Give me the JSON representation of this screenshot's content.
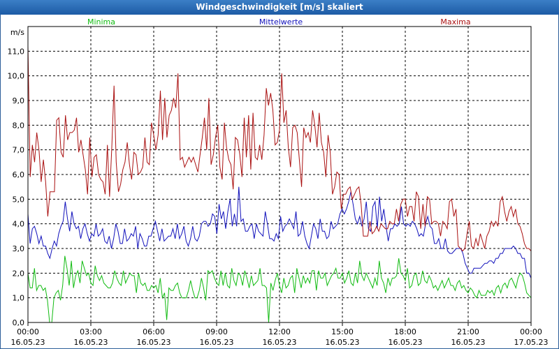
{
  "window": {
    "title": "Windgeschwindigkeit [m/s] skaliert"
  },
  "colors": {
    "minima": "#11bb11",
    "mittelwerte": "#1111bb",
    "maxima": "#aa1111",
    "titlebar": "#2a6db5"
  },
  "chart_data": {
    "type": "line",
    "title": "Windgeschwindigkeit [m/s] skaliert",
    "ylabel": "m/s",
    "ylim": [
      0,
      12
    ],
    "xlim": [
      0,
      24
    ],
    "grid": true,
    "legend": [
      "Minima",
      "Mittelwerte",
      "Maxima"
    ],
    "yticks": [
      "0,0",
      "1,0",
      "2,0",
      "3,0",
      "4,0",
      "5,0",
      "6,0",
      "7,0",
      "8,0",
      "9,0",
      "10,0",
      "11,0"
    ],
    "xticks": [
      {
        "time": "00:00",
        "date": "16.05.23"
      },
      {
        "time": "03:00",
        "date": "16.05.23"
      },
      {
        "time": "06:00",
        "date": "16.05.23"
      },
      {
        "time": "09:00",
        "date": "16.05.23"
      },
      {
        "time": "12:00",
        "date": "16.05.23"
      },
      {
        "time": "15:00",
        "date": "16.05.23"
      },
      {
        "time": "18:00",
        "date": "16.05.23"
      },
      {
        "time": "21:00",
        "date": "16.05.23"
      },
      {
        "time": "00:00",
        "date": "17.05.23"
      }
    ],
    "series": [
      {
        "name": "Minima",
        "values": [
          2.0,
          1.4,
          1.4,
          2.2,
          1.3,
          1.5,
          1.5,
          1.3,
          1.4,
          0.9,
          0.0,
          0.0,
          1.0,
          1.2,
          1.3,
          0.9,
          1.5,
          2.7,
          2.2,
          1.5,
          2.5,
          1.4,
          1.9,
          2.1,
          1.6,
          2.5,
          2.2,
          1.9,
          2.0,
          1.6,
          1.5,
          2.3,
          1.9,
          1.7,
          1.9,
          1.6,
          1.5,
          1.4,
          1.4,
          1.6,
          2.1,
          1.8,
          1.6,
          1.5,
          2.1,
          1.6,
          1.8,
          2.0,
          1.9,
          1.9,
          1.2,
          2.0,
          1.6,
          1.5,
          1.6,
          1.3,
          1.3,
          1.5,
          1.4,
          1.5,
          1.2,
          1.8,
          1.0,
          1.2,
          0.1,
          1.4,
          1.3,
          1.3,
          1.5,
          1.6,
          1.2,
          1.0,
          1.0,
          1.0,
          1.3,
          1.7,
          1.3,
          1.0,
          1.0,
          1.3,
          1.8,
          1.4,
          0.9,
          2.1,
          2.0,
          2.1,
          1.8,
          1.6,
          1.5,
          2.1,
          1.5,
          2.0,
          1.5,
          1.4,
          2.2,
          1.7,
          1.5,
          2.0,
          1.9,
          1.5,
          2.1,
          1.8,
          1.4,
          1.9,
          1.5,
          1.6,
          1.7,
          2.2,
          1.5,
          1.5,
          1.4,
          0.0,
          1.6,
          1.3,
          1.7,
          2.0,
          1.5,
          1.2,
          1.8,
          1.4,
          1.5,
          1.8,
          1.9,
          1.2,
          2.2,
          1.8,
          1.4,
          1.9,
          1.6,
          1.8,
          1.6,
          2.1,
          2.1,
          1.3,
          2.1,
          1.8,
          1.8,
          2.0,
          1.5,
          1.7,
          1.9,
          2.0,
          2.2,
          1.8,
          1.8,
          2.0,
          1.6,
          1.8,
          2.1,
          1.6,
          1.5,
          2.0,
          1.6,
          2.5,
          1.9,
          1.7,
          2.0,
          1.8,
          1.6,
          1.4,
          1.8,
          1.5,
          2.5,
          1.8,
          1.6,
          1.2,
          1.8,
          1.5,
          1.8,
          1.8,
          1.9,
          2.6,
          2.0,
          1.9,
          1.7,
          2.2,
          1.4,
          1.5,
          1.9,
          2.0,
          1.5,
          1.6,
          2.1,
          1.7,
          1.6,
          1.9,
          1.7,
          1.4,
          1.5,
          1.3,
          1.5,
          1.7,
          1.4,
          1.6,
          1.8,
          1.5,
          1.5,
          1.3,
          1.6,
          1.7,
          1.4,
          1.5,
          1.3,
          1.2,
          1.4,
          1.3,
          1.1,
          1.0,
          1.3,
          1.1,
          1.1,
          1.1,
          1.3,
          1.2,
          1.3,
          1.1,
          1.4,
          1.5,
          1.2,
          1.5,
          1.6,
          1.4,
          1.7,
          1.8,
          1.6,
          1.4,
          1.8,
          2.0,
          1.9,
          1.6,
          1.2,
          1.1,
          1.0
        ]
      },
      {
        "name": "Mittelwerte",
        "values": [
          4.4,
          3.2,
          3.8,
          3.9,
          3.6,
          3.2,
          3.5,
          3.1,
          3.1,
          2.8,
          2.6,
          3.0,
          3.3,
          3.1,
          3.6,
          3.9,
          4.1,
          4.9,
          4.2,
          3.7,
          4.5,
          4.0,
          3.8,
          3.9,
          3.4,
          3.8,
          4.0,
          3.6,
          3.3,
          3.6,
          3.5,
          4.0,
          3.5,
          3.6,
          3.8,
          3.3,
          3.2,
          3.5,
          3.0,
          3.4,
          4.0,
          3.7,
          3.2,
          3.2,
          3.8,
          3.3,
          3.4,
          3.6,
          3.5,
          3.9,
          3.0,
          3.6,
          3.4,
          3.1,
          3.1,
          3.5,
          3.5,
          3.8,
          4.1,
          3.7,
          3.3,
          3.8,
          3.3,
          3.4,
          3.5,
          3.5,
          3.8,
          3.4,
          4.0,
          3.4,
          3.6,
          3.9,
          3.3,
          3.1,
          3.4,
          3.9,
          3.4,
          3.3,
          3.5,
          4.0,
          4.1,
          4.1,
          3.9,
          4.0,
          4.4,
          4.3,
          3.6,
          4.8,
          4.2,
          4.5,
          3.8,
          4.5,
          5.0,
          3.9,
          4.4,
          3.9,
          5.5,
          4.1,
          4.2,
          3.7,
          3.7,
          3.9,
          4.0,
          3.4,
          4.0,
          3.7,
          3.6,
          3.5,
          4.5,
          4.0,
          3.4,
          3.4,
          3.3,
          3.6,
          3.4,
          4.3,
          3.7,
          3.9,
          4.0,
          4.2,
          4.0,
          3.8,
          4.5,
          3.5,
          3.6,
          4.1,
          3.5,
          3.2,
          3.0,
          3.5,
          4.0,
          3.8,
          3.4,
          4.2,
          3.7,
          3.7,
          3.4,
          3.5,
          4.1,
          3.8,
          3.9,
          4.0,
          4.4,
          4.6,
          4.4,
          4.6,
          4.9,
          5.3,
          4.8,
          4.2,
          4.0,
          4.3,
          3.9,
          4.2,
          4.9,
          3.8,
          3.7,
          4.7,
          4.9,
          3.8,
          5.1,
          4.1,
          4.6,
          3.9,
          3.3,
          3.8,
          3.8,
          4.0,
          3.9,
          4.0,
          4.7,
          4.0,
          3.9,
          4.0,
          3.9,
          4.1,
          4.0,
          3.8,
          3.5,
          3.6,
          3.5,
          4.0,
          4.3,
          3.9,
          3.8,
          3.2,
          3.2,
          3.4,
          3.0,
          3.0,
          3.4,
          2.9,
          2.8,
          2.8,
          2.9,
          3.0,
          3.0,
          3.0,
          2.8,
          2.4,
          2.2,
          2.0,
          2.0,
          2.2,
          2.2,
          2.2,
          2.2,
          2.3,
          2.4,
          2.4,
          2.5,
          2.5,
          2.4,
          2.6,
          2.6,
          2.8,
          2.8,
          3.0,
          3.0,
          3.0,
          3.0,
          3.1,
          3.0,
          2.8,
          2.8,
          2.6,
          2.6,
          2.0,
          2.0,
          1.8
        ]
      },
      {
        "name": "Maxima",
        "values": [
          11.2,
          5.9,
          7.2,
          6.5,
          7.7,
          7.0,
          5.7,
          6.6,
          5.7,
          4.3,
          5.3,
          5.3,
          5.3,
          8.2,
          8.3,
          6.9,
          6.7,
          8.4,
          7.4,
          7.7,
          7.7,
          7.8,
          8.3,
          6.9,
          7.4,
          6.8,
          6.2,
          5.2,
          7.5,
          5.9,
          6.7,
          6.8,
          6.0,
          5.8,
          5.7,
          5.2,
          7.2,
          5.1,
          7.1,
          9.6,
          6.5,
          5.3,
          5.6,
          6.2,
          6.5,
          7.3,
          6.4,
          5.8,
          6.9,
          6.8,
          6.0,
          6.1,
          6.3,
          7.5,
          6.5,
          6.4,
          8.1,
          7.6,
          7.0,
          7.6,
          9.4,
          7.4,
          9.1,
          7.5,
          8.4,
          8.6,
          9.1,
          8.7,
          10.1,
          6.6,
          6.7,
          6.3,
          6.5,
          6.7,
          6.5,
          6.7,
          6.4,
          6.1,
          6.8,
          7.5,
          8.3,
          7.0,
          9.1,
          6.4,
          6.8,
          7.5,
          8.0,
          6.3,
          5.8,
          8.1,
          7.1,
          6.6,
          6.4,
          5.4,
          7.5,
          7.4,
          6.8,
          5.9,
          8.3,
          6.7,
          8.4,
          6.2,
          8.5,
          6.7,
          6.6,
          7.2,
          6.6,
          7.6,
          9.5,
          8.8,
          9.3,
          8.6,
          7.2,
          7.3,
          7.8,
          10.1,
          8.1,
          8.6,
          7.1,
          6.3,
          7.9,
          8.0,
          7.7,
          6.6,
          5.5,
          7.9,
          7.5,
          7.7,
          7.3,
          8.6,
          8.0,
          7.1,
          8.5,
          7.3,
          6.9,
          5.9,
          7.6,
          6.9,
          5.2,
          5.5,
          6.1,
          6.0,
          4.6,
          5.2,
          5.2,
          5.4,
          5.5,
          5.0,
          5.2,
          5.4,
          5.5,
          4.8,
          3.5,
          3.5,
          3.5,
          4.1,
          3.6,
          3.7,
          3.9,
          3.7,
          4.0,
          3.9,
          3.8,
          3.8,
          4.1,
          4.0,
          4.0,
          4.6,
          4.1,
          4.8,
          5.0,
          5.0,
          4.3,
          4.7,
          4.7,
          4.1,
          5.3,
          5.1,
          3.8,
          4.8,
          3.9,
          5.1,
          5.0,
          4.0,
          4.1,
          4.1,
          4.0,
          3.5,
          4.1,
          4.0,
          3.8,
          4.9,
          5.0,
          4.3,
          4.6,
          3.1,
          3.0,
          2.9,
          3.0,
          3.6,
          4.1,
          3.1,
          3.0,
          3.4,
          3.1,
          3.6,
          3.3,
          3.0,
          3.5,
          3.7,
          4.1,
          3.9,
          4.1,
          3.9,
          4.9,
          5.1,
          4.5,
          4.1,
          4.5,
          4.7,
          4.3,
          4.6,
          4.0,
          3.9,
          3.6,
          3.2,
          3.0,
          3.0,
          2.9
        ]
      }
    ]
  }
}
